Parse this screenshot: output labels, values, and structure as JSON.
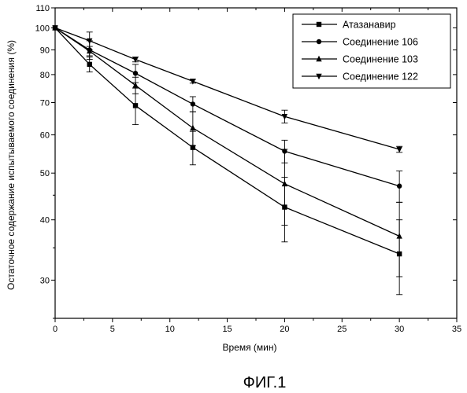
{
  "chart_data": {
    "type": "line",
    "title": "",
    "xlabel": "Время (мин)",
    "ylabel": "Остаточное содержание испытываемого соединения (%)",
    "caption": "ФИГ.1",
    "xlim": [
      0,
      35
    ],
    "ylim": [
      25,
      110
    ],
    "yscale": "log",
    "grid": false,
    "legend_position": "top-right",
    "x_ticks": [
      "0",
      "5",
      "10",
      "15",
      "20",
      "25",
      "30",
      "35"
    ],
    "y_ticks": [
      "30",
      "40",
      "50",
      "60",
      "70",
      "80",
      "90",
      "100",
      "110"
    ],
    "x": [
      0,
      3,
      7,
      12,
      20,
      30
    ],
    "series": [
      {
        "name": "Атазанавир",
        "marker": "square",
        "values": [
          100,
          84,
          69,
          56.5,
          42.5,
          34
        ],
        "errors": [
          1,
          3,
          6,
          4.5,
          6.5,
          6
        ]
      },
      {
        "name": "Соединение 106",
        "marker": "circle",
        "values": [
          100,
          90,
          80.5,
          69.5,
          55.5,
          47
        ],
        "errors": [
          1,
          4,
          3.5,
          2.5,
          3,
          3.5
        ]
      },
      {
        "name": "Соединение 103",
        "marker": "triangle-up",
        "values": [
          100,
          89.5,
          76,
          62,
          47.5,
          37
        ],
        "errors": [
          1,
          2,
          3,
          5,
          8.5,
          6.5
        ]
      },
      {
        "name": "Соединение 122",
        "marker": "triangle-down",
        "values": [
          100,
          94,
          86,
          77.5,
          65.5,
          56
        ],
        "errors": [
          1,
          4,
          1,
          0.7,
          2,
          0.8
        ]
      }
    ]
  }
}
